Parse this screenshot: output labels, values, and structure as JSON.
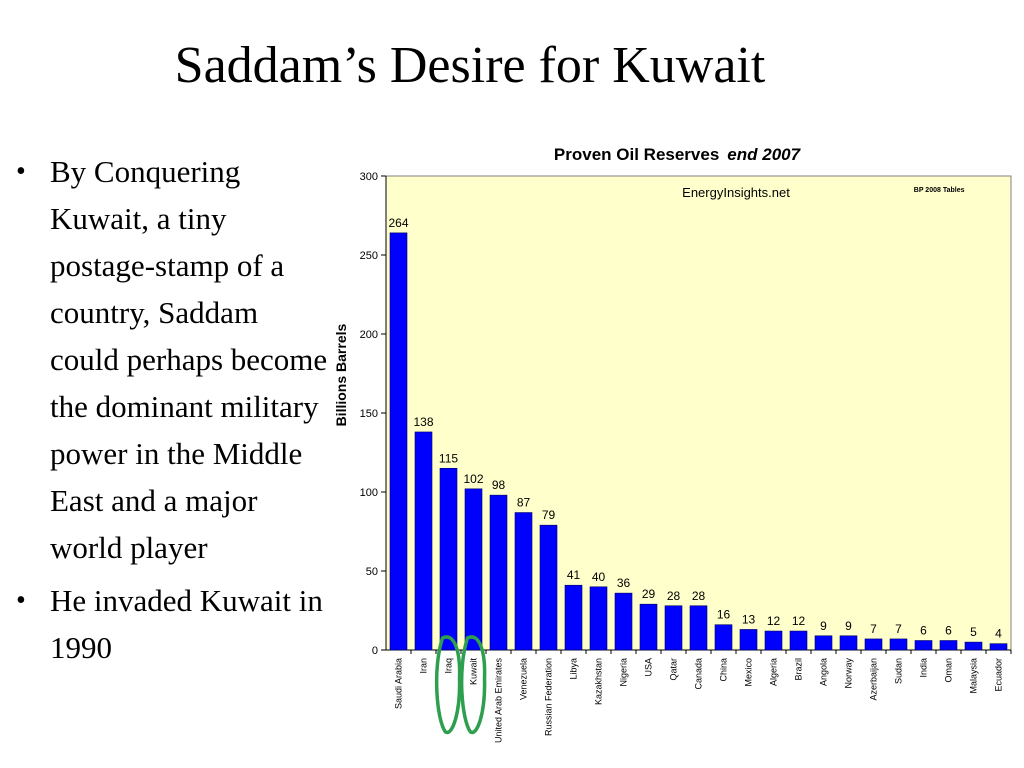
{
  "slide": {
    "title": "Saddam’s Desire for Kuwait",
    "bullets": [
      "By Conquering Kuwait, a tiny postage-stamp of a country, Saddam could perhaps become the dominant military power in the Middle East and a major world player",
      "He invaded Kuwait in 1990"
    ]
  },
  "chart_data": {
    "type": "bar",
    "title": "Proven Oil Reserves",
    "title_suffix": "end 2007",
    "watermark": "EnergyInsights.net",
    "source_note": "BP 2008 Tables",
    "ylabel": "Billions Barrels",
    "xlabel": "",
    "ylim": [
      0,
      300
    ],
    "yticks": [
      0,
      50,
      100,
      150,
      200,
      250,
      300
    ],
    "grid": false,
    "legend": "none",
    "categories": [
      "Saudi Arabia",
      "Iran",
      "Iraq",
      "Kuwait",
      "United Arab Emirates",
      "Venezuela",
      "Russian Federation",
      "Libya",
      "Kazakhstan",
      "Nigeria",
      "USA",
      "Qatar",
      "Canada",
      "China",
      "Mexico",
      "Algeria",
      "Brazil",
      "Angola",
      "Norway",
      "Azerbaijan",
      "Sudan",
      "India",
      "Oman",
      "Malaysia",
      "Ecuador"
    ],
    "values": [
      264,
      138,
      115,
      102,
      98,
      87,
      79,
      41,
      40,
      36,
      29,
      28,
      28,
      16,
      13,
      12,
      12,
      9,
      9,
      7,
      7,
      6,
      6,
      5,
      4
    ],
    "colors": {
      "bar": "#0000ff",
      "plot_bg": "#ffffcc",
      "highlight": "#2e9e4f"
    },
    "highlighted_categories": [
      "Iraq",
      "Kuwait"
    ]
  }
}
